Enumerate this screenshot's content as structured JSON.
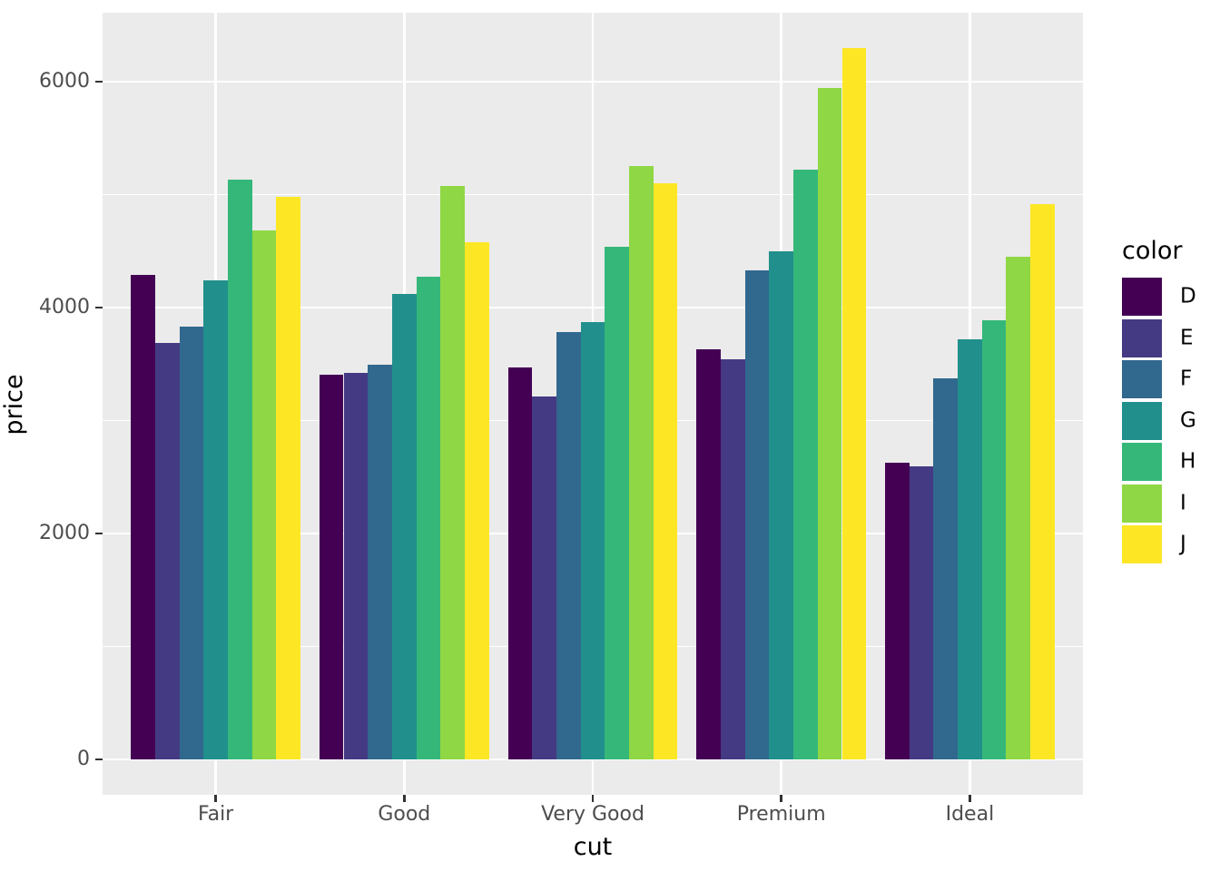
{
  "chart_data": {
    "type": "bar",
    "title": "",
    "xlabel": "cut",
    "ylabel": "price",
    "legend_title": "color",
    "legend_position": "right",
    "categories": [
      "Fair",
      "Good",
      "Very Good",
      "Premium",
      "Ideal"
    ],
    "series": [
      {
        "name": "D",
        "color": "#440154",
        "values": [
          4291.1,
          3405.4,
          3470.5,
          3631.3,
          2629.1
        ]
      },
      {
        "name": "E",
        "color": "#443A83",
        "values": [
          3682.3,
          3423.6,
          3214.7,
          3538.9,
          2597.6
        ]
      },
      {
        "name": "F",
        "color": "#31688E",
        "values": [
          3827.0,
          3495.8,
          3778.8,
          4324.9,
          3374.9
        ]
      },
      {
        "name": "G",
        "color": "#21908C",
        "values": [
          4239.3,
          4123.5,
          3872.8,
          4500.7,
          3720.7
        ]
      },
      {
        "name": "H",
        "color": "#35B779",
        "values": [
          5135.7,
          4276.3,
          4535.4,
          5216.7,
          3889.3
        ]
      },
      {
        "name": "I",
        "color": "#8FD744",
        "values": [
          4685.4,
          5078.5,
          5255.9,
          5946.2,
          4452.0
        ]
      },
      {
        "name": "J",
        "color": "#FDE725",
        "values": [
          4975.7,
          4574.2,
          5103.5,
          6294.7,
          4918.2
        ]
      }
    ],
    "y_ticks": [
      0,
      2000,
      4000,
      6000
    ],
    "y_tick_labels": [
      "0",
      "2000",
      "4000",
      "6000"
    ],
    "y_minor_ticks": [
      1000,
      3000,
      5000
    ],
    "ylim": [
      0,
      6295
    ],
    "grid": true,
    "panel_bg": "#EBEBEB",
    "grid_color": "#FFFFFF",
    "tick_label_color": "#4D4D4D",
    "axis_title_color": "#000000"
  }
}
